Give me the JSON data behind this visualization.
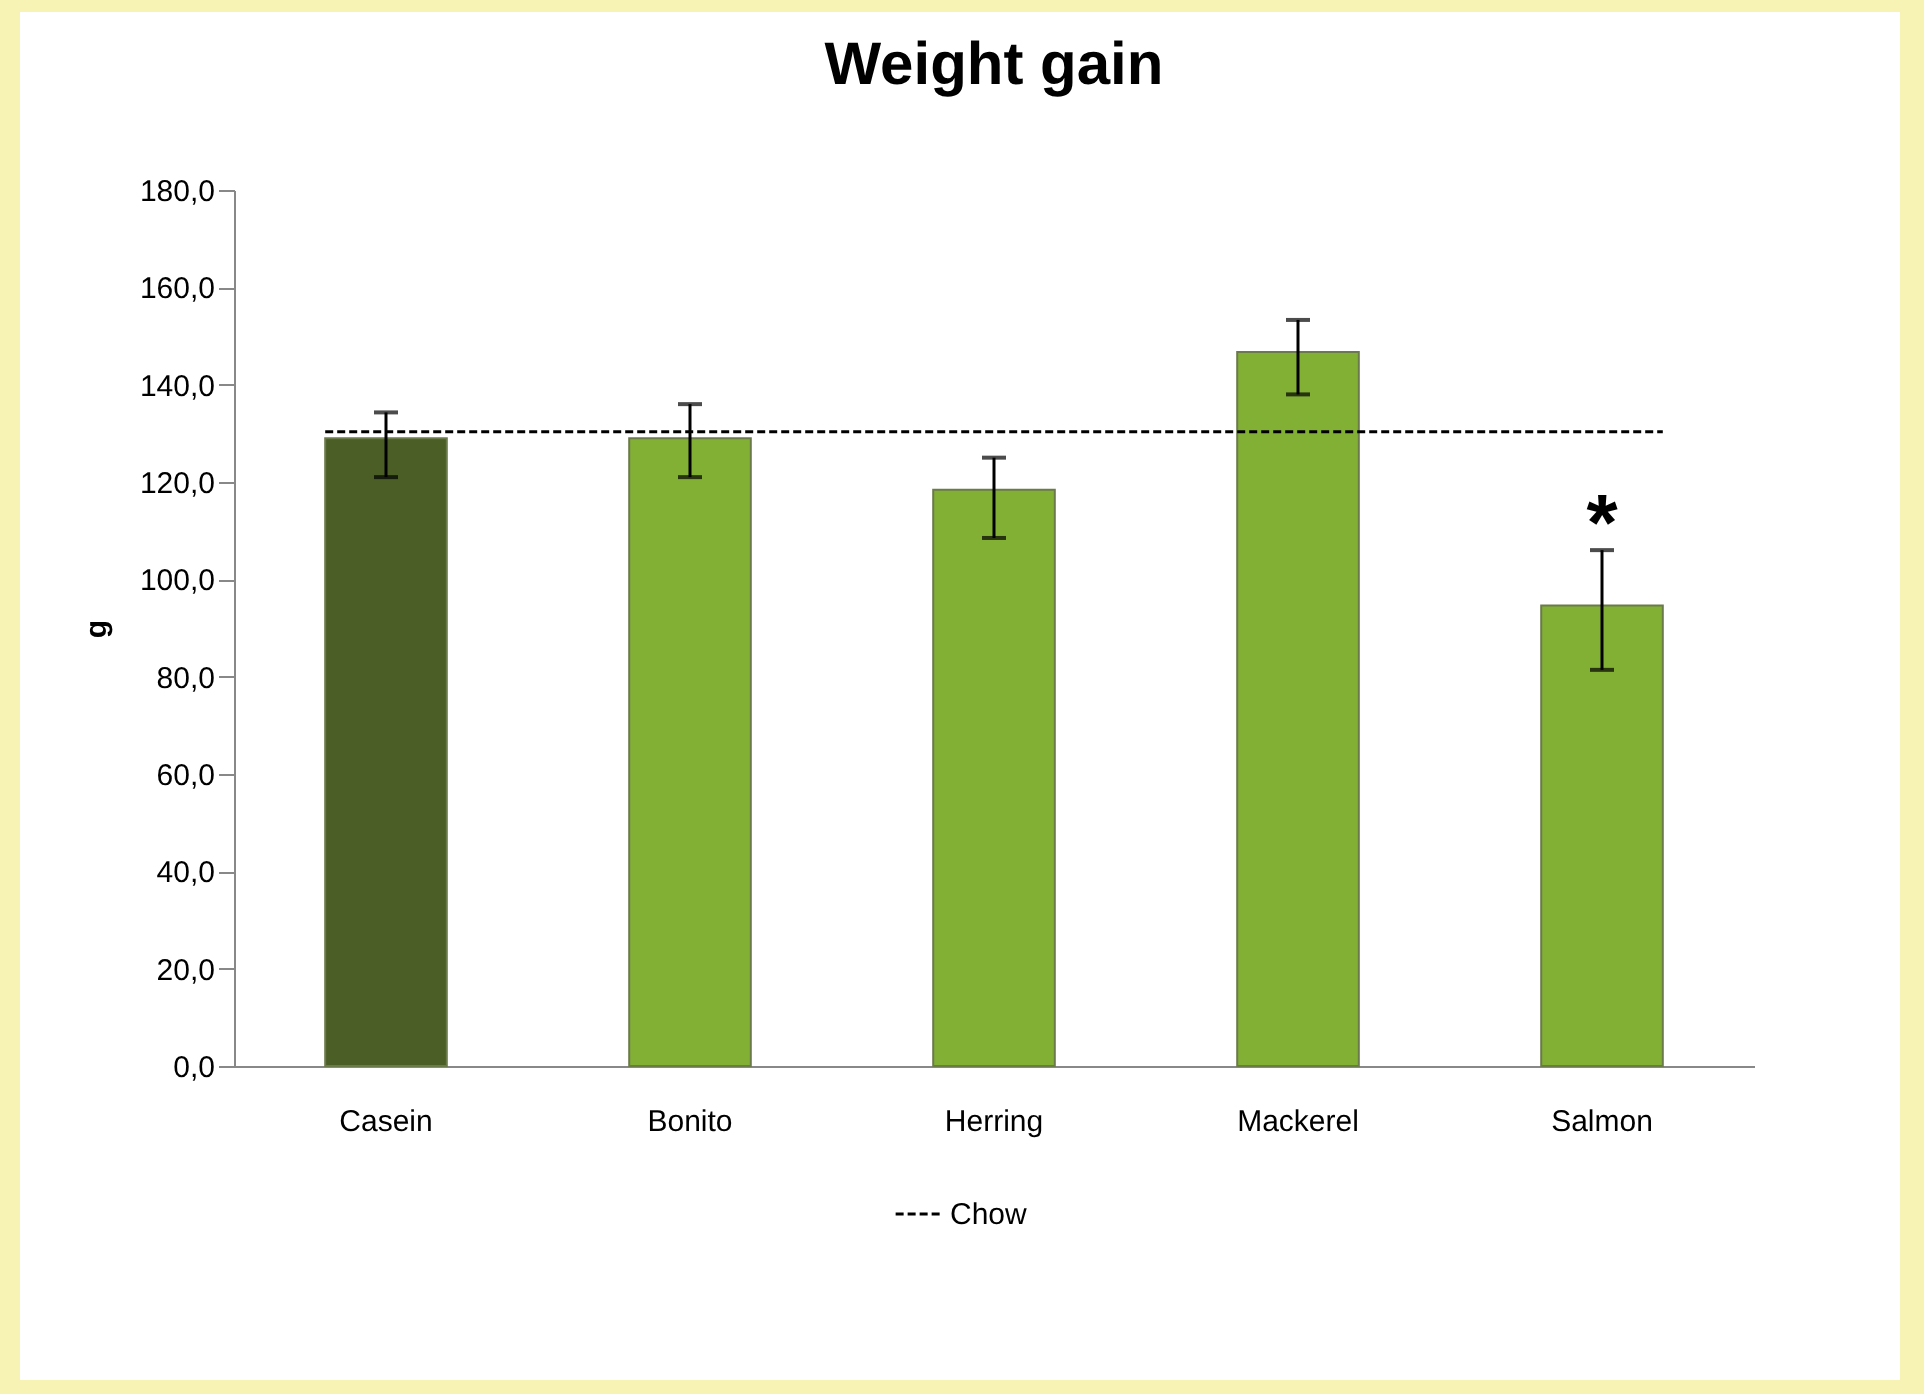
{
  "chart_data": {
    "type": "bar",
    "title": "Weight gain",
    "ylabel": "g",
    "categories": [
      "Casein",
      "Bonito",
      "Herring",
      "Mackerel",
      "Salmon"
    ],
    "values": [
      129,
      129,
      118.4,
      146.7,
      94.6
    ],
    "colors": [
      "#4a5e26",
      "#82b034",
      "#82b034",
      "#82b034",
      "#82b034"
    ],
    "errors": [
      [
        121,
        134.3
      ],
      [
        121,
        136
      ],
      [
        108.5,
        125
      ],
      [
        138,
        153.3
      ],
      [
        81.4,
        106
      ]
    ],
    "ylim": [
      0,
      180
    ],
    "yticks": [
      {
        "value": 0,
        "label": "0,0"
      },
      {
        "value": 20,
        "label": "20,0"
      },
      {
        "value": 40,
        "label": "40,0"
      },
      {
        "value": 60,
        "label": "60,0"
      },
      {
        "value": 80,
        "label": "80,0"
      },
      {
        "value": 100,
        "label": "100,0"
      },
      {
        "value": 120,
        "label": "120,0"
      },
      {
        "value": 140,
        "label": "140,0"
      },
      {
        "value": 160,
        "label": "160,0"
      },
      {
        "value": 180,
        "label": "180,0"
      }
    ],
    "ref_lines": [
      {
        "axis": "y",
        "value": 130.3,
        "label": "Chow",
        "color": "#000000",
        "line_style": "dashed"
      }
    ],
    "annotations": [
      "*"
    ],
    "grid": false,
    "legend": "bottom"
  }
}
